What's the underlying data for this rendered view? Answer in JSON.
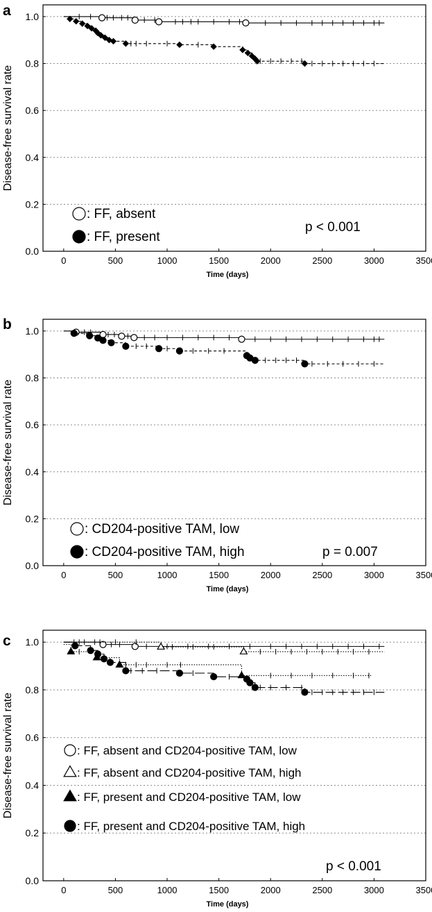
{
  "chart_data": [
    {
      "panel": "a",
      "type": "line",
      "line_shape": "step",
      "xlabel": "Time (days)",
      "ylabel": "Disease-free survival rate",
      "xlim": [
        -200,
        3500
      ],
      "ylim": [
        0.0,
        1.05
      ],
      "x_ticks": [
        0,
        500,
        1000,
        1500,
        2000,
        2500,
        3000,
        3500
      ],
      "y_ticks": [
        0.0,
        0.2,
        0.4,
        0.6,
        0.8,
        1.0
      ],
      "grid": "horizontal-dotted",
      "legend_position": "bottom-left",
      "annotation": "p < 0.001",
      "series": [
        {
          "legend_label": ": FF, absent",
          "marker": "open-circle",
          "line_style": "solid",
          "end_x": 3100,
          "events_x": [
            0,
            370,
            690,
            920,
            1760
          ],
          "events_y": [
            1.0,
            0.995,
            0.985,
            0.978,
            0.973
          ],
          "censor_x": [
            150,
            260,
            420,
            480,
            560,
            620,
            780,
            880,
            1080,
            1150,
            1230,
            1300,
            1450,
            1600,
            1700,
            1950,
            2100,
            2250,
            2400,
            2500,
            2600,
            2700,
            2800,
            2900,
            3000,
            3050
          ]
        },
        {
          "legend_label": ": FF, present",
          "marker": "filled-diamond",
          "line_style": "dashed",
          "end_x": 3100,
          "events_x": [
            0,
            60,
            120,
            180,
            230,
            270,
            310,
            330,
            360,
            400,
            440,
            480,
            600,
            1120,
            1450,
            1730,
            1780,
            1820,
            1850,
            1870,
            2330
          ],
          "events_y": [
            1.0,
            0.99,
            0.98,
            0.97,
            0.96,
            0.95,
            0.94,
            0.93,
            0.92,
            0.91,
            0.9,
            0.895,
            0.885,
            0.88,
            0.872,
            0.858,
            0.845,
            0.832,
            0.82,
            0.81,
            0.8
          ],
          "censor_x": [
            650,
            700,
            800,
            1000,
            1300,
            1900,
            2000,
            2100,
            2200,
            2300,
            2400,
            2500,
            2600,
            2700,
            2800,
            2900,
            3000
          ]
        }
      ]
    },
    {
      "panel": "b",
      "type": "line",
      "line_shape": "step",
      "xlabel": "Time (days)",
      "ylabel": "Disease-free survival rate",
      "xlim": [
        -200,
        3500
      ],
      "ylim": [
        0.0,
        1.05
      ],
      "x_ticks": [
        0,
        500,
        1000,
        1500,
        2000,
        2500,
        3000,
        3500
      ],
      "y_ticks": [
        0.0,
        0.2,
        0.4,
        0.6,
        0.8,
        1.0
      ],
      "grid": "horizontal-dotted",
      "legend_position": "bottom-left",
      "annotation": "p = 0.007",
      "series": [
        {
          "legend_label": ": CD204-positive TAM, low",
          "marker": "open-circle",
          "line_style": "solid",
          "end_x": 3100,
          "events_x": [
            0,
            120,
            380,
            560,
            680,
            1720
          ],
          "events_y": [
            1.0,
            0.995,
            0.985,
            0.978,
            0.972,
            0.965
          ],
          "censor_x": [
            200,
            260,
            430,
            490,
            620,
            780,
            880,
            1000,
            1150,
            1300,
            1450,
            1600,
            1850,
            2000,
            2150,
            2300,
            2450,
            2600,
            2750,
            2900,
            3000,
            3050
          ]
        },
        {
          "legend_label": ": CD204-positive TAM, high",
          "marker": "filled-circle",
          "line_style": "dashed",
          "end_x": 3100,
          "events_x": [
            0,
            100,
            250,
            330,
            380,
            460,
            600,
            920,
            1120,
            1770,
            1800,
            1850,
            2330
          ],
          "events_y": [
            1.0,
            0.99,
            0.98,
            0.97,
            0.96,
            0.95,
            0.935,
            0.925,
            0.915,
            0.895,
            0.885,
            0.875,
            0.86
          ],
          "censor_x": [
            700,
            800,
            1000,
            1250,
            1400,
            1550,
            1950,
            2050,
            2150,
            2250,
            2400,
            2550,
            2700,
            2850,
            3000
          ]
        }
      ]
    },
    {
      "panel": "c",
      "type": "line",
      "line_shape": "step",
      "xlabel": "Time (days)",
      "ylabel": "Disease-free survival rate",
      "xlim": [
        -200,
        3500
      ],
      "ylim": [
        0.0,
        1.05
      ],
      "x_ticks": [
        0,
        500,
        1000,
        1500,
        2000,
        2500,
        3000,
        3500
      ],
      "y_ticks": [
        0.0,
        0.2,
        0.4,
        0.6,
        0.8,
        1.0
      ],
      "grid": "horizontal-dotted",
      "legend_position": "bottom-left",
      "annotation": "p < 0.001",
      "series": [
        {
          "legend_label": ": FF, absent and CD204-positive TAM, low",
          "marker": "open-circle",
          "line_style": "solid",
          "end_x": 3100,
          "events_x": [
            0,
            380,
            690
          ],
          "events_y": [
            1.0,
            0.99,
            0.982
          ],
          "censor_x": [
            200,
            300,
            460,
            540,
            800,
            1000,
            1200,
            1400,
            1600,
            1800,
            2000,
            2150,
            2300,
            2450,
            2600,
            2750,
            2900,
            3050
          ]
        },
        {
          "legend_label": ": FF, absent and CD204-positive TAM, high",
          "marker": "open-triangle",
          "line_style": "dotted",
          "end_x": 3100,
          "events_x": [
            0,
            940,
            1740
          ],
          "events_y": [
            1.0,
            0.98,
            0.96
          ],
          "censor_x": [
            100,
            150,
            350,
            500,
            700,
            1050,
            1250,
            1450,
            1900,
            2050,
            2200,
            2350,
            2500,
            2650,
            2800,
            2950
          ]
        },
        {
          "legend_label": ": FF, present and CD204-positive TAM, low",
          "marker": "filled-triangle",
          "line_style": "dotted",
          "end_x": 2980,
          "events_x": [
            0,
            70,
            320,
            540,
            1720
          ],
          "events_y": [
            0.99,
            0.96,
            0.935,
            0.905,
            0.86
          ],
          "censor_x": [
            150,
            600,
            700,
            800,
            1000,
            1130,
            2000,
            2200,
            2400,
            2600,
            2800,
            2950
          ]
        },
        {
          "legend_label": ": FF, present and CD204-positive TAM, high",
          "marker": "filled-circle",
          "line_style": "long-dash",
          "end_x": 3100,
          "events_x": [
            0,
            110,
            260,
            330,
            390,
            450,
            600,
            1120,
            1450,
            1770,
            1800,
            1850,
            2330
          ],
          "events_y": [
            1.0,
            0.985,
            0.965,
            0.95,
            0.93,
            0.915,
            0.88,
            0.87,
            0.855,
            0.845,
            0.83,
            0.81,
            0.79
          ],
          "censor_x": [
            650,
            760,
            900,
            1250,
            1600,
            1900,
            2000,
            2150,
            2300,
            2400,
            2500,
            2600,
            2700,
            2800,
            2900,
            3000
          ]
        }
      ]
    }
  ]
}
